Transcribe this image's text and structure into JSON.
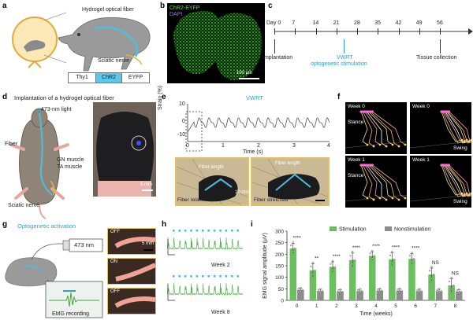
{
  "panel_labels": {
    "a": "a",
    "b": "b",
    "c": "c",
    "d": "d",
    "e": "e",
    "f": "f",
    "g": "g",
    "h": "h",
    "i": "i"
  },
  "panel_a": {
    "fiber_label": "Hydrogel optical fiber",
    "nerve_label": "Sciatic nerve",
    "construct": [
      "Thy1",
      "ChR2",
      "EYFP"
    ]
  },
  "panel_b": {
    "title_chr2": "ChR2-EYFP",
    "title_dapi": "DAPI",
    "scale": "100 μm"
  },
  "panel_c": {
    "days": [
      "Day 0",
      "7",
      "14",
      "21",
      "28",
      "35",
      "42",
      "49",
      "56"
    ],
    "implantation": "Implantation",
    "vwrt": "VWRT",
    "optogenetic": "optogenetic stimulation",
    "tissue": "Tissue collection"
  },
  "panel_d": {
    "title": "Implantation of a hydrogel optical fiber",
    "light": "473-nm light",
    "fiber": "Fiber",
    "gn": "GN muscle",
    "ta": "TA muscle",
    "sciatic": "Sciatic nerve",
    "scale": "5 mm"
  },
  "panel_e": {
    "title": "VWRT",
    "ylabel": "Strain (%)",
    "xlabel": "Time (s)",
    "yticks": [
      "10",
      "0",
      "-10"
    ],
    "xticks": [
      "0",
      "1",
      "2",
      "3",
      "4"
    ],
    "fiber_length_1": "Fiber length",
    "fiber_length_2": "Fiber length",
    "relaxed": "Fiber relaxed",
    "stretched": "Fiber stretched",
    "scale": "10 mm"
  },
  "panel_f": {
    "tl": "Week 0",
    "tl_phase": "Stance",
    "tr": "Week 0",
    "tr_phase": "Swing",
    "bl": "Week 1",
    "bl_phase": "Stance",
    "br": "Week 1",
    "br_phase": "Swing"
  },
  "panel_g": {
    "title": "Optogenetic activation",
    "laser": "473 nm",
    "emg": "EMG recording",
    "states": [
      "OFF",
      "ON",
      "OFF"
    ],
    "scale": "5 mm"
  },
  "panel_h": {
    "week2": "Week 2",
    "week8": "Week 8"
  },
  "chart_data": {
    "type": "bar",
    "categories": [
      "0",
      "1",
      "2",
      "3",
      "4",
      "5",
      "6",
      "7",
      "8"
    ],
    "series": [
      {
        "name": "Stimulation",
        "values": [
          225,
          130,
          145,
          175,
          193,
          178,
          180,
          112,
          65
        ],
        "err": [
          22,
          28,
          22,
          30,
          18,
          28,
          22,
          28,
          28
        ]
      },
      {
        "name": "Nonstimulation",
        "values": [
          45,
          40,
          38,
          40,
          42,
          42,
          40,
          40,
          38
        ],
        "err": [
          8,
          8,
          8,
          8,
          8,
          8,
          8,
          8,
          8
        ]
      }
    ],
    "significance": [
      "****",
      "**",
      "****",
      "****",
      "****",
      "****",
      "****",
      "NS",
      "NS"
    ],
    "xlabel": "Time (weeks)",
    "ylabel": "EMG signal amplitude (μV)",
    "ylim": [
      0,
      300
    ],
    "yticks": [
      0,
      50,
      100,
      150,
      200,
      250,
      300
    ],
    "legend_position": "top-center",
    "colors": {
      "stim": "#6cbf5f",
      "nonstim": "#8c8c8c"
    }
  }
}
